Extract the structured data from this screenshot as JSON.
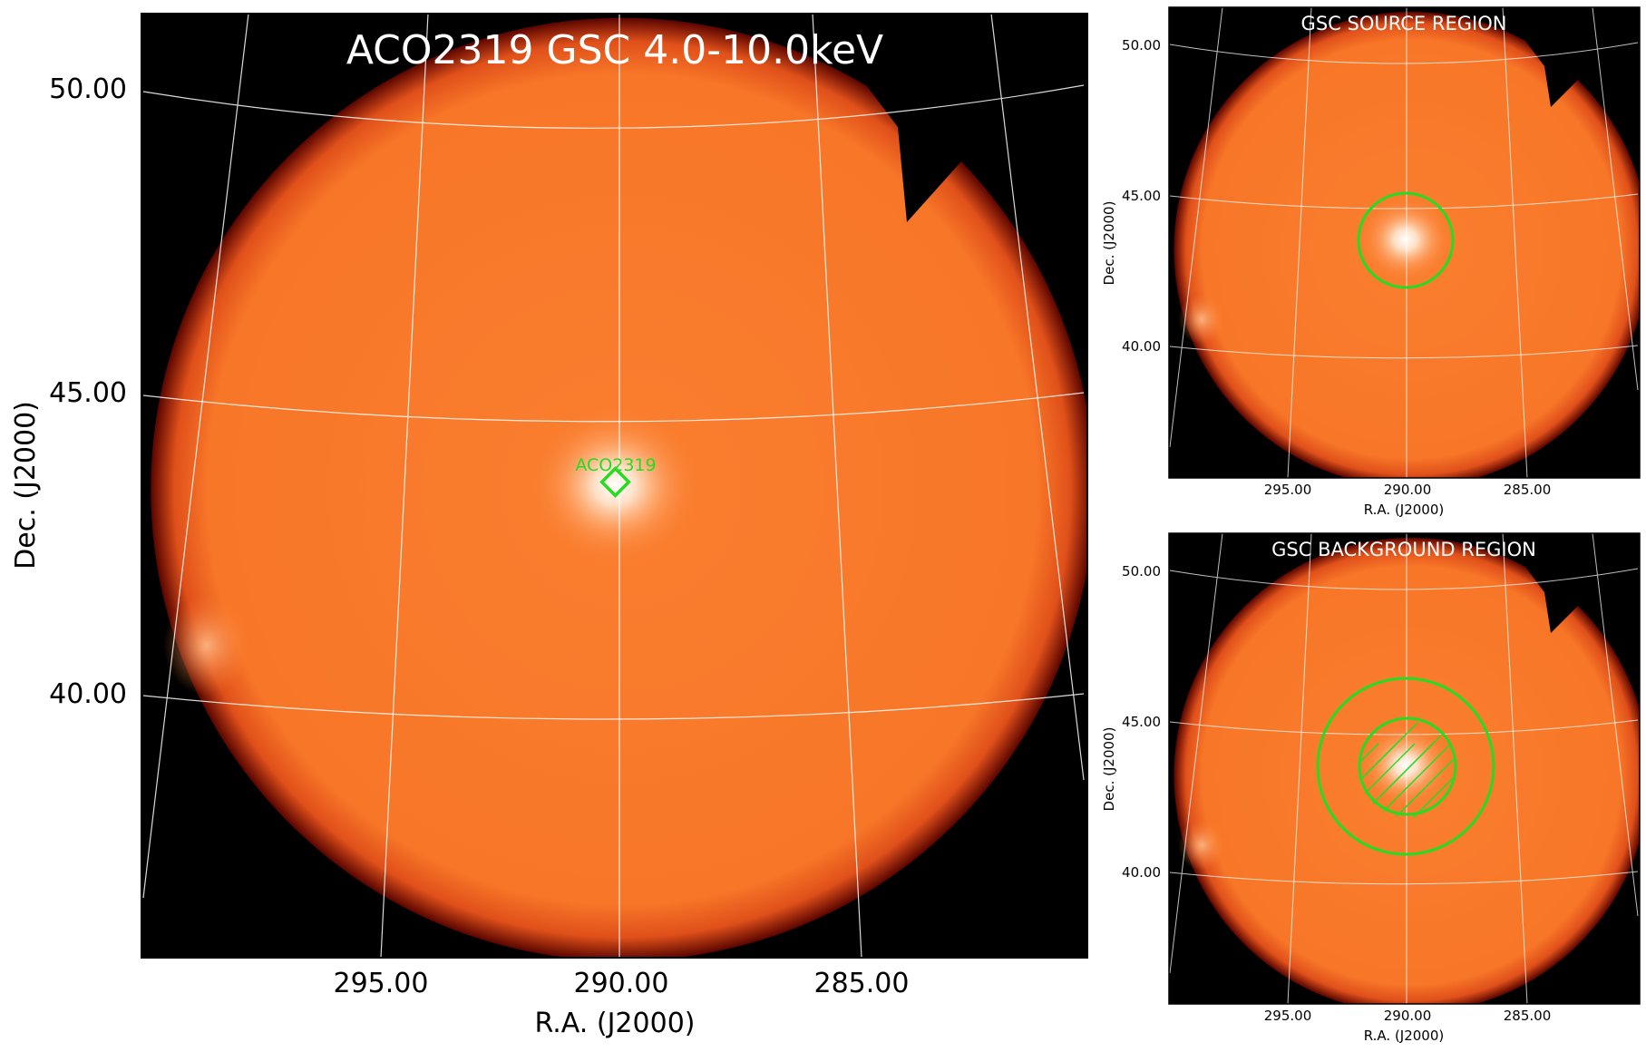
{
  "main": {
    "title": "ACO2319 GSC 4.0-10.0keV",
    "xlabel": "R.A. (J2000)",
    "ylabel": "Dec. (J2000)",
    "xticks": [
      "295.00",
      "290.00",
      "285.00"
    ],
    "yticks": [
      "50.00",
      "45.00",
      "40.00"
    ],
    "source_label": "ACO2319"
  },
  "source_panel": {
    "title": "GSC SOURCE REGION",
    "xlabel": "R.A. (J2000)",
    "ylabel": "Dec. (J2000)",
    "xticks": [
      "295.00",
      "290.00",
      "285.00"
    ],
    "yticks": [
      "50.00",
      "45.00",
      "40.00"
    ]
  },
  "background_panel": {
    "title": "GSC BACKGROUND REGION",
    "xlabel": "R.A. (J2000)",
    "ylabel": "Dec. (J2000)",
    "xticks": [
      "295.00",
      "290.00",
      "285.00"
    ],
    "yticks": [
      "50.00",
      "45.00",
      "40.00"
    ]
  },
  "colors": {
    "field": "#f97a2a",
    "edge": "#6b0a00",
    "sky": "#000000",
    "region": "#22dd22",
    "grid": "#ffffff"
  }
}
